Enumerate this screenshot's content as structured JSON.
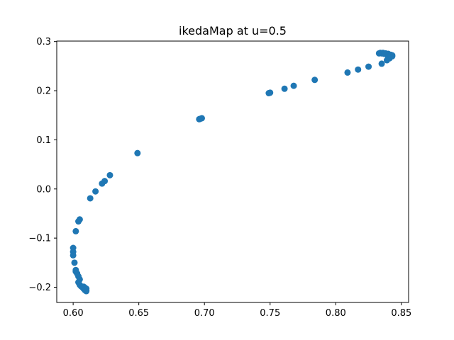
{
  "chart_data": {
    "type": "scatter",
    "title": "ikedaMap at u=0.5",
    "xlabel": "",
    "ylabel": "",
    "xlim": [
      0.5875,
      0.8555
    ],
    "ylim": [
      -0.231,
      0.301
    ],
    "xticks": [
      0.6,
      0.65,
      0.7,
      0.75,
      0.8,
      0.85
    ],
    "xtick_labels": [
      "0.60",
      "0.65",
      "0.70",
      "0.75",
      "0.80",
      "0.85"
    ],
    "yticks": [
      -0.2,
      -0.1,
      0.0,
      0.1,
      0.2,
      0.3
    ],
    "ytick_labels": [
      "−0.2",
      "−0.1",
      "0.0",
      "0.1",
      "0.2",
      "0.3"
    ],
    "grid": false,
    "legend": "none",
    "color": "#1f77b4",
    "series": [
      {
        "x": [
          0.6,
          0.6,
          0.6,
          0.601,
          0.602,
          0.602,
          0.603,
          0.604,
          0.605,
          0.604,
          0.605,
          0.606,
          0.607,
          0.608,
          0.608,
          0.609,
          0.609,
          0.61,
          0.61,
          0.608,
          0.609,
          0.61,
          0.609,
          0.61,
          0.605,
          0.604,
          0.602,
          0.613,
          0.617,
          0.622,
          0.624,
          0.628,
          0.649,
          0.696,
          0.697,
          0.698,
          0.749,
          0.75,
          0.761,
          0.768,
          0.784,
          0.809,
          0.817,
          0.825,
          0.833,
          0.834,
          0.835,
          0.836,
          0.838,
          0.84,
          0.842,
          0.843,
          0.841,
          0.839,
          0.835,
          0.84,
          0.842,
          0.843,
          0.837
        ],
        "y": [
          -0.12,
          -0.128,
          -0.135,
          -0.15,
          -0.165,
          -0.168,
          -0.172,
          -0.178,
          -0.184,
          -0.19,
          -0.195,
          -0.198,
          -0.2,
          -0.201,
          -0.203,
          -0.204,
          -0.205,
          -0.206,
          -0.207,
          -0.199,
          -0.201,
          -0.203,
          -0.206,
          -0.208,
          -0.062,
          -0.066,
          -0.086,
          -0.019,
          -0.005,
          0.011,
          0.016,
          0.028,
          0.073,
          0.142,
          0.143,
          0.144,
          0.195,
          0.196,
          0.204,
          0.21,
          0.222,
          0.237,
          0.243,
          0.249,
          0.276,
          0.277,
          0.276,
          0.277,
          0.276,
          0.275,
          0.273,
          0.27,
          0.266,
          0.262,
          0.255,
          0.268,
          0.271,
          0.272,
          0.275
        ]
      }
    ]
  }
}
